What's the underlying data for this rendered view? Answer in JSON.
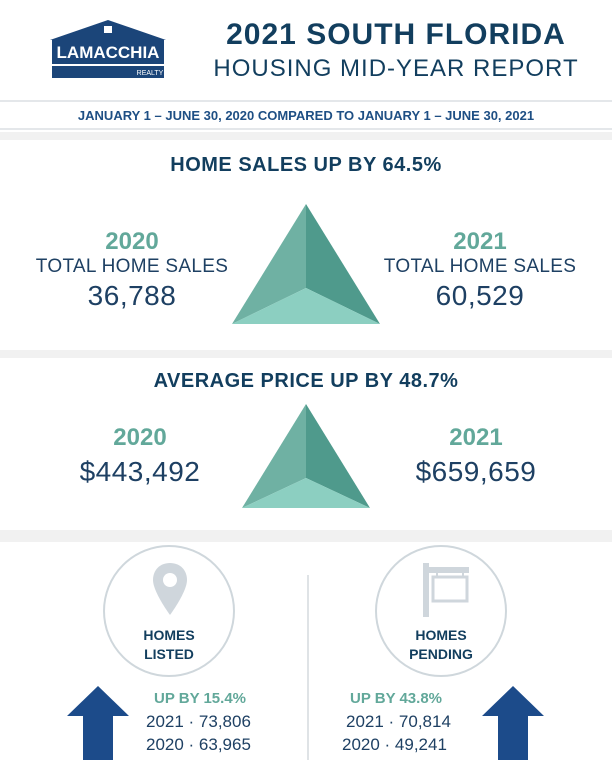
{
  "header": {
    "logo_text": "LAMACCHIA",
    "logo_sub": "REALTY",
    "title_line1": "2021 SOUTH FLORIDA",
    "title_line2": "HOUSING MID-YEAR REPORT"
  },
  "date_range": "JANUARY 1 – JUNE 30, 2020 COMPARED TO JANUARY 1 – JUNE 30, 2021",
  "home_sales": {
    "title": "HOME SALES UP BY 64.5%",
    "left": {
      "year": "2020",
      "label": "TOTAL HOME SALES",
      "value": "36,788"
    },
    "right": {
      "year": "2021",
      "label": "TOTAL HOME SALES",
      "value": "60,529"
    }
  },
  "average_price": {
    "title": "AVERAGE PRICE UP BY 48.7%",
    "left": {
      "year": "2020",
      "value": "$443,492"
    },
    "right": {
      "year": "2021",
      "value": "$659,659"
    }
  },
  "homes_listed": {
    "label_line1": "HOMES",
    "label_line2": "LISTED",
    "icon": "map-pin-icon",
    "up_text": "UP BY 15.4%",
    "row1": "2021 ·  73,806",
    "row2": "2020 ·  63,965"
  },
  "homes_pending": {
    "label_line1": "HOMES",
    "label_line2": "PENDING",
    "icon": "for-sale-sign-icon",
    "up_text": "UP BY 43.8%",
    "row1": "2021 · 70,814",
    "row2": "2020 ·  49,241"
  },
  "colors": {
    "navy": "#123e5e",
    "teal": "#62a89a",
    "arrow_blue": "#1c4b8a",
    "band_gray": "#f1f1f1"
  }
}
